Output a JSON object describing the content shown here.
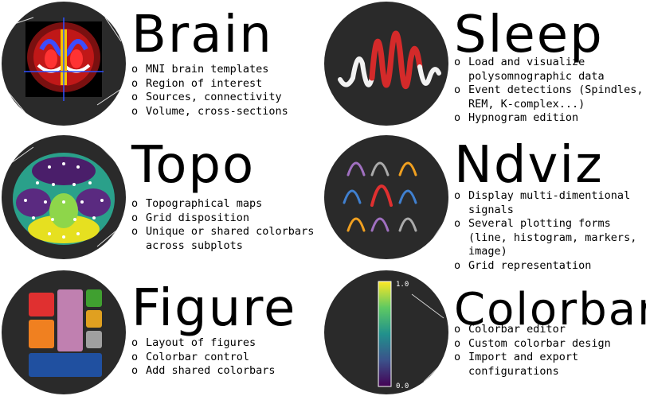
{
  "modules": [
    {
      "title": "Brain",
      "items": [
        "MNI brain templates",
        "Region of interest",
        "Sources, connectivity",
        "Volume, cross-sections"
      ]
    },
    {
      "title": "Sleep",
      "items": [
        "Load and visualize polysomnographic data",
        "Event detections (Spindles, REM, K-complex...)",
        "Hypnogram edition"
      ]
    },
    {
      "title": "Topo",
      "items": [
        "Topographical maps",
        "Grid disposition",
        "Unique or shared colorbars across subplots"
      ]
    },
    {
      "title": "Ndviz",
      "items": [
        "Display multi-dimentional signals",
        "Several plotting forms (line, histogram, markers, image)",
        "Grid representation"
      ]
    },
    {
      "title": "Figure",
      "items": [
        "Layout of figures",
        "Colorbar control",
        "Add shared colorbars"
      ]
    },
    {
      "title": "Colorbar",
      "items": [
        "Colorbar editor",
        "Custom colorbar design",
        "Import and export configurations"
      ]
    }
  ],
  "colorbar_ticks": {
    "max": "1.0",
    "min": "0.0"
  },
  "icons": [
    "brain-slice-icon",
    "sleep-signal-icon",
    "topo-map-icon",
    "ndviz-signals-icon",
    "figure-layout-icon",
    "colorbar-icon"
  ]
}
